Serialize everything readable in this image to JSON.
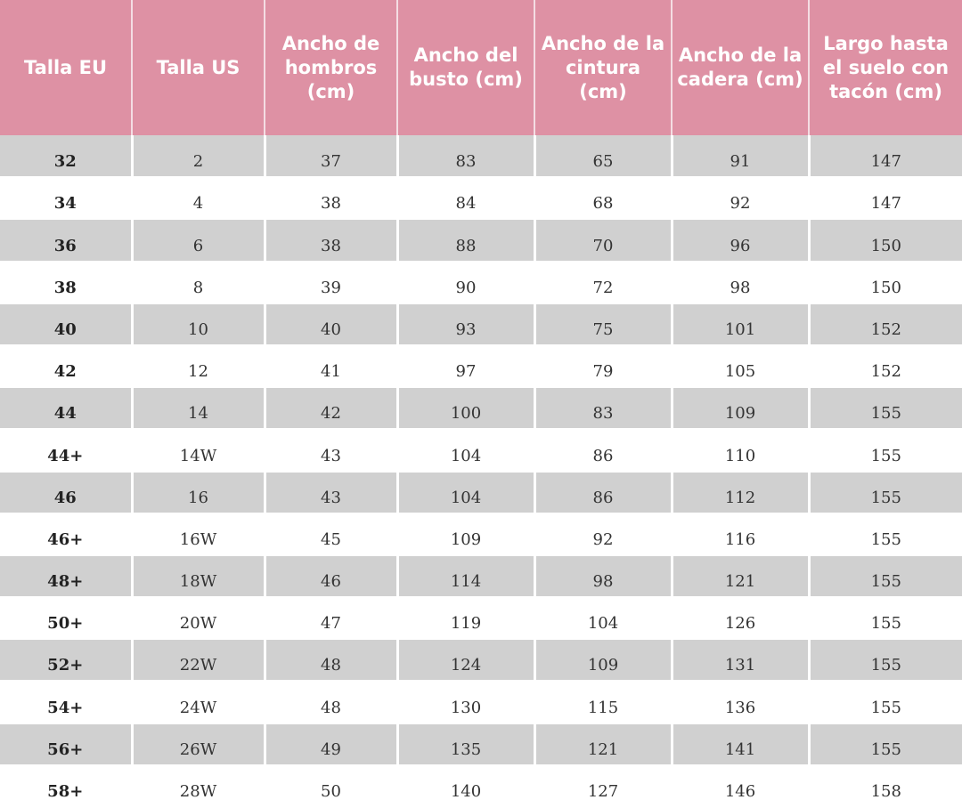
{
  "colors": {
    "header_bg": "#de91a4",
    "header_text": "#ffffff",
    "stripe_bg": "#d0d0d0"
  },
  "table": {
    "headers": [
      "Talla EU",
      "Talla US",
      "Ancho de hombros (cm)",
      "Ancho del busto (cm)",
      "Ancho de la cintura (cm)",
      "Ancho de la cadera (cm)",
      "Largo hasta el suelo con tacón (cm)"
    ],
    "rows": [
      [
        "32",
        "2",
        "37",
        "83",
        "65",
        "91",
        "147"
      ],
      [
        "34",
        "4",
        "38",
        "84",
        "68",
        "92",
        "147"
      ],
      [
        "36",
        "6",
        "38",
        "88",
        "70",
        "96",
        "150"
      ],
      [
        "38",
        "8",
        "39",
        "90",
        "72",
        "98",
        "150"
      ],
      [
        "40",
        "10",
        "40",
        "93",
        "75",
        "101",
        "152"
      ],
      [
        "42",
        "12",
        "41",
        "97",
        "79",
        "105",
        "152"
      ],
      [
        "44",
        "14",
        "42",
        "100",
        "83",
        "109",
        "155"
      ],
      [
        "44+",
        "14W",
        "43",
        "104",
        "86",
        "110",
        "155"
      ],
      [
        "46",
        "16",
        "43",
        "104",
        "86",
        "112",
        "155"
      ],
      [
        "46+",
        "16W",
        "45",
        "109",
        "92",
        "116",
        "155"
      ],
      [
        "48+",
        "18W",
        "46",
        "114",
        "98",
        "121",
        "155"
      ],
      [
        "50+",
        "20W",
        "47",
        "119",
        "104",
        "126",
        "155"
      ],
      [
        "52+",
        "22W",
        "48",
        "124",
        "109",
        "131",
        "155"
      ],
      [
        "54+",
        "24W",
        "48",
        "130",
        "115",
        "136",
        "155"
      ],
      [
        "56+",
        "26W",
        "49",
        "135",
        "121",
        "141",
        "155"
      ],
      [
        "58+",
        "28W",
        "50",
        "140",
        "127",
        "146",
        "158"
      ]
    ]
  }
}
